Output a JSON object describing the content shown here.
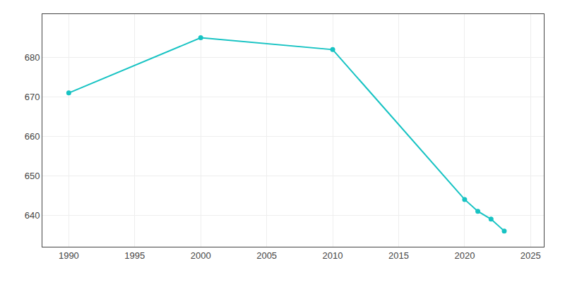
{
  "chart_data": {
    "type": "line",
    "x": [
      1990,
      2000,
      2010,
      2020,
      2021,
      2022,
      2023
    ],
    "values": [
      671,
      685,
      682,
      644,
      641,
      639,
      636
    ],
    "color": "#17c3c3",
    "marker": "circle",
    "xlim": [
      1988,
      2026
    ],
    "ylim": [
      632,
      691
    ],
    "xticks": [
      1990,
      1995,
      2000,
      2005,
      2010,
      2015,
      2020,
      2025
    ],
    "yticks": [
      640,
      650,
      660,
      670,
      680
    ],
    "grid": true
  }
}
